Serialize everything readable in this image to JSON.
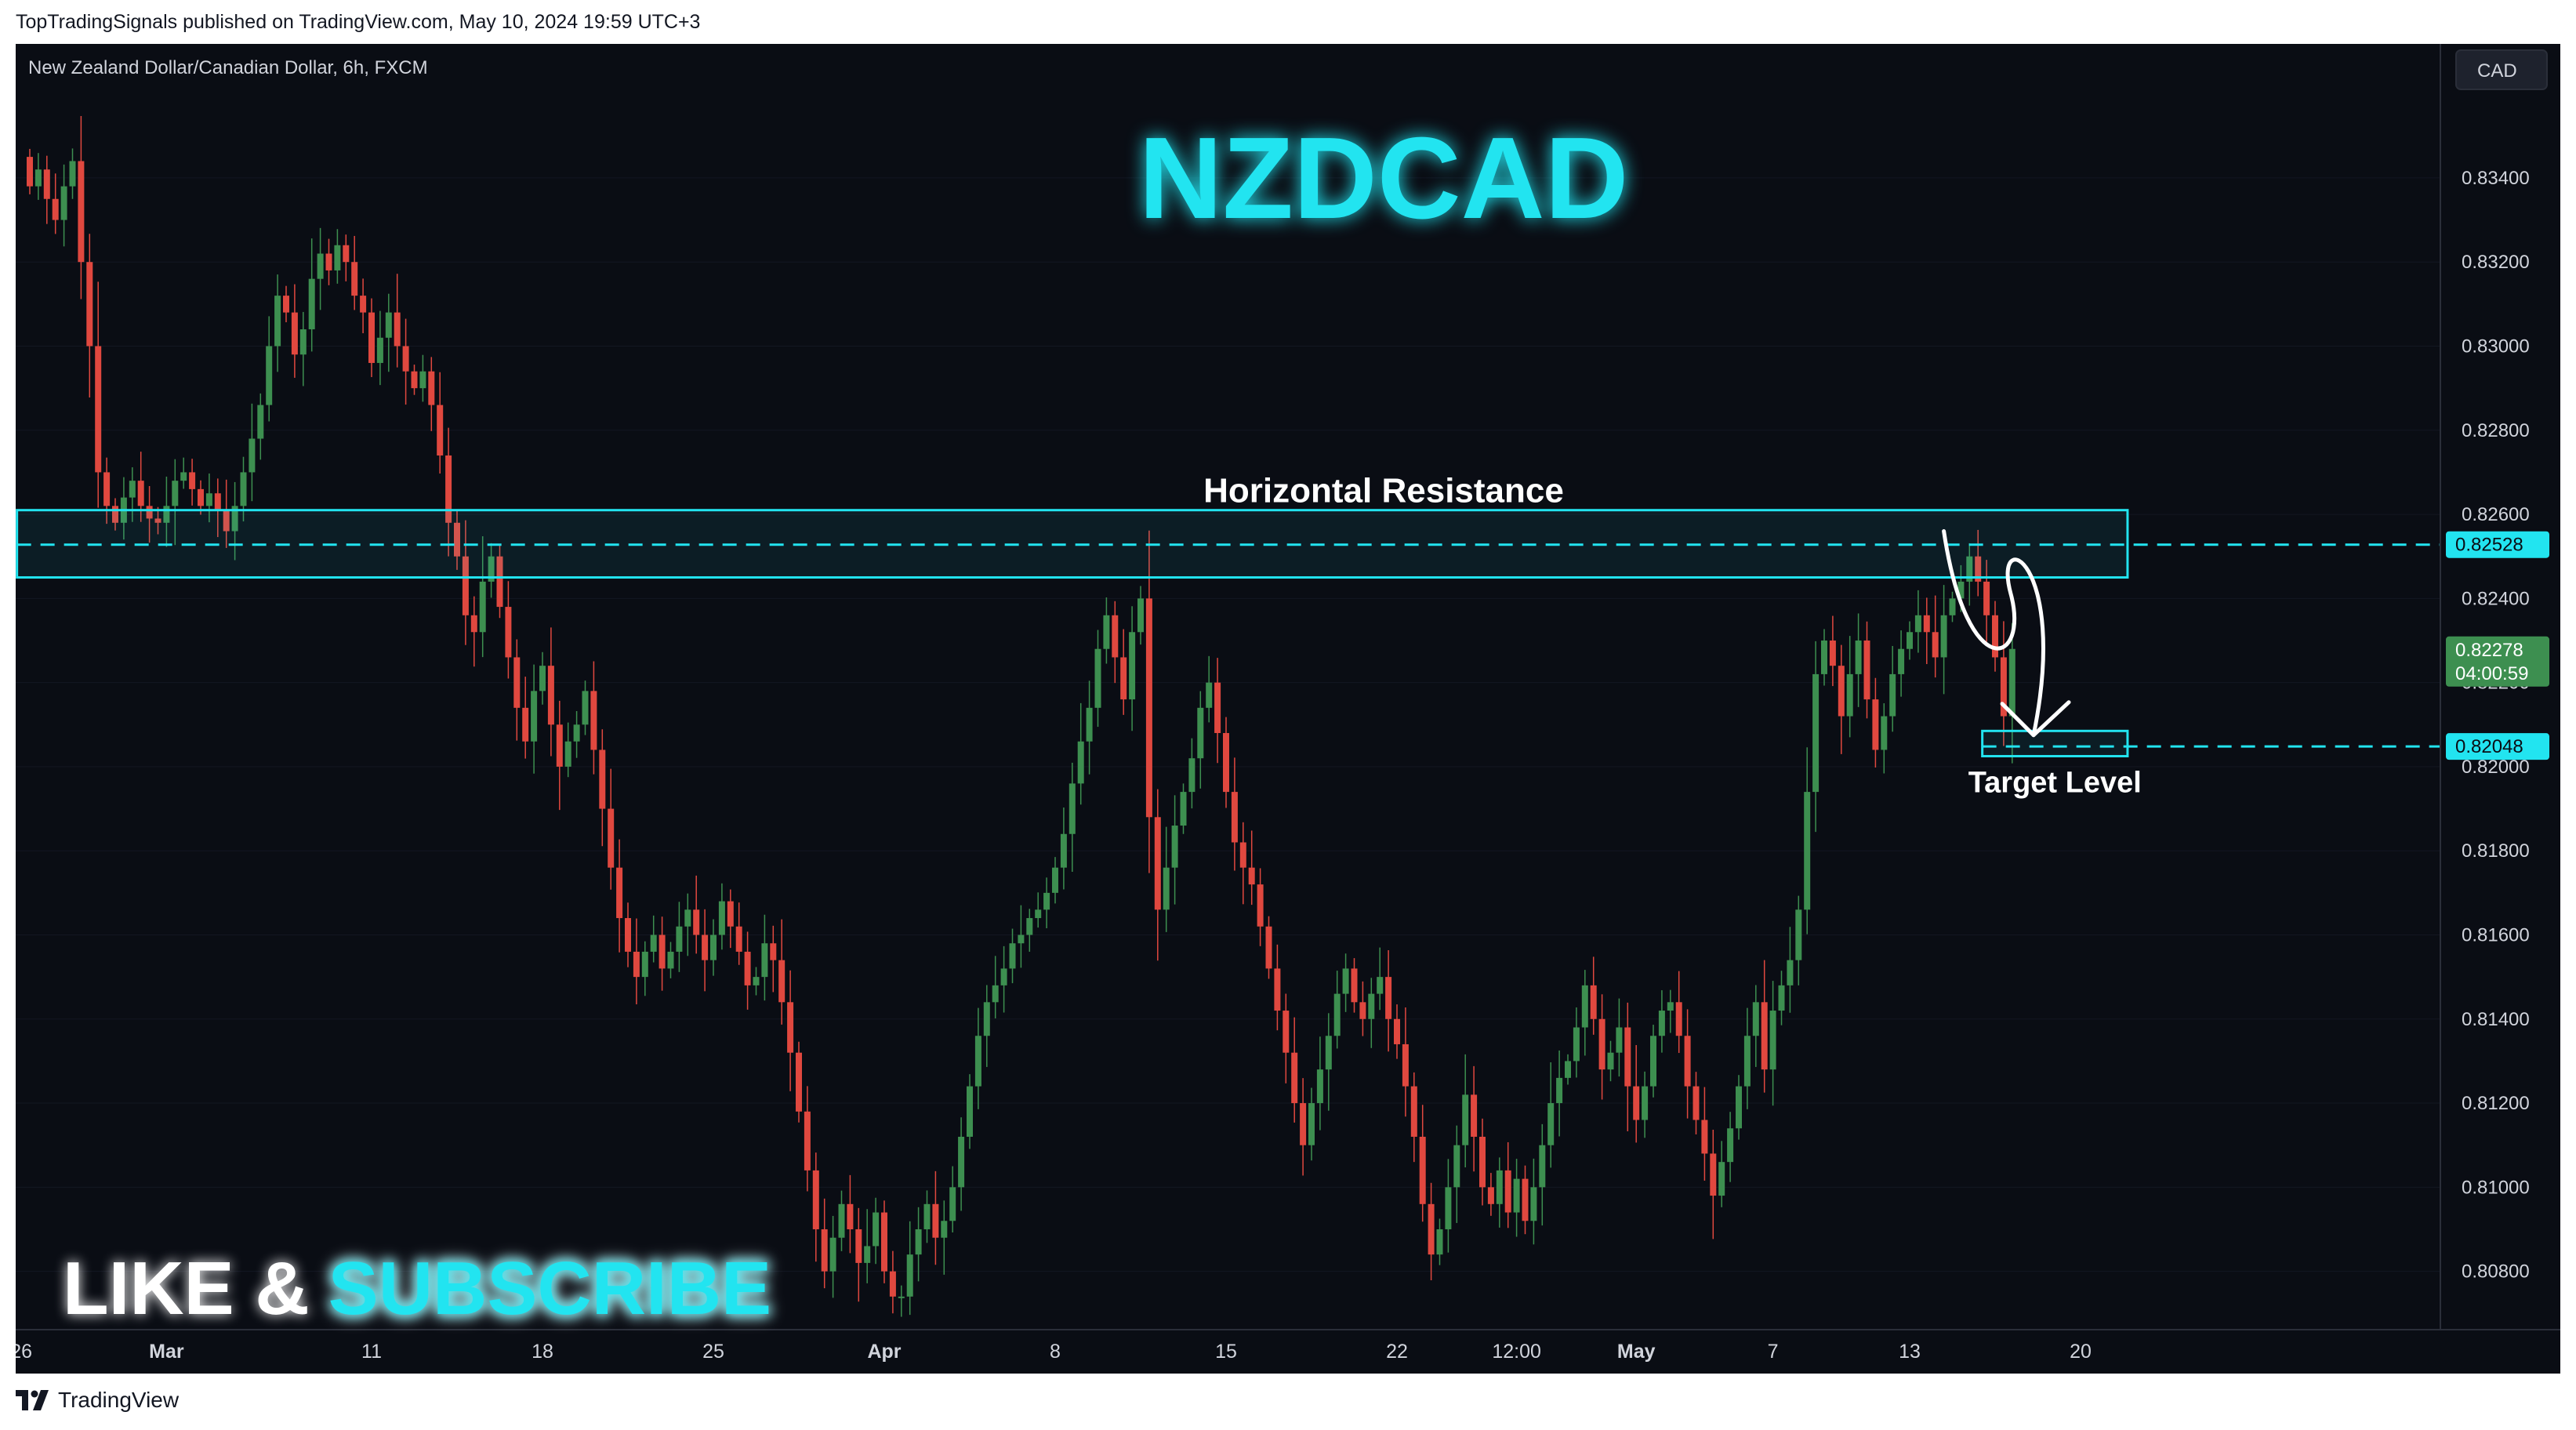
{
  "header": {
    "publish_line": "TopTradingSignals published on TradingView.com, May 10, 2024 19:59 UTC+3"
  },
  "footer": {
    "brand": "TradingView"
  },
  "colors": {
    "background": "#0a0d14",
    "up": "#3d8f50",
    "down": "#e0483f",
    "accent": "#22e4f0",
    "axis_text": "#d1d4dc",
    "border": "#2a2e39"
  },
  "chart_data": {
    "type": "candlestick",
    "symbol_line": "New Zealand Dollar/Canadian Dollar, 6h, FXCM",
    "title": "NZDCAD",
    "currency_label": "CAD",
    "y_axis": {
      "ylim": [
        0.8068,
        0.837
      ],
      "ticks": [
        "0.80800",
        "0.81000",
        "0.81200",
        "0.81400",
        "0.81600",
        "0.81800",
        "0.82000",
        "0.82200",
        "0.82400",
        "0.82600",
        "0.82800",
        "0.83000",
        "0.83200",
        "0.83400"
      ]
    },
    "x_axis": {
      "ticks": [
        {
          "label": "26",
          "index": -1
        },
        {
          "label": "Mar",
          "index": 16
        },
        {
          "label": "11",
          "index": 40
        },
        {
          "label": "18",
          "index": 60
        },
        {
          "label": "25",
          "index": 80
        },
        {
          "label": "Apr",
          "index": 100
        },
        {
          "label": "8",
          "index": 120
        },
        {
          "label": "15",
          "index": 140
        },
        {
          "label": "22",
          "index": 160
        },
        {
          "label": "12:00",
          "index": 174
        },
        {
          "label": "May",
          "index": 188
        },
        {
          "label": "7",
          "index": 204
        },
        {
          "label": "13",
          "index": 220
        },
        {
          "label": "20",
          "index": 240
        }
      ]
    },
    "price_series": {
      "name": "NZDCAD",
      "closes_start": 0.8345,
      "closes": [
        0.8338,
        0.8342,
        0.8335,
        0.833,
        0.8338,
        0.8344,
        0.832,
        0.83,
        0.827,
        0.8262,
        0.8258,
        0.8264,
        0.8268,
        0.8262,
        0.8259,
        0.8258,
        0.8262,
        0.8268,
        0.827,
        0.8266,
        0.8262,
        0.8265,
        0.8261,
        0.8256,
        0.8262,
        0.827,
        0.8278,
        0.8286,
        0.83,
        0.8312,
        0.8308,
        0.8298,
        0.8304,
        0.8316,
        0.8322,
        0.8318,
        0.8324,
        0.832,
        0.8312,
        0.8308,
        0.8296,
        0.8302,
        0.8308,
        0.83,
        0.8294,
        0.829,
        0.8294,
        0.8286,
        0.8274,
        0.8258,
        0.825,
        0.8236,
        0.8232,
        0.8244,
        0.825,
        0.8238,
        0.8226,
        0.8214,
        0.8206,
        0.8218,
        0.8224,
        0.821,
        0.82,
        0.8206,
        0.821,
        0.8218,
        0.8204,
        0.819,
        0.8176,
        0.8164,
        0.8156,
        0.815,
        0.8156,
        0.816,
        0.8152,
        0.8156,
        0.8162,
        0.8166,
        0.816,
        0.8154,
        0.816,
        0.8168,
        0.8162,
        0.8156,
        0.8148,
        0.815,
        0.8158,
        0.8154,
        0.8144,
        0.8132,
        0.8118,
        0.8104,
        0.809,
        0.808,
        0.8088,
        0.8096,
        0.809,
        0.8082,
        0.8086,
        0.8094,
        0.808,
        0.8074,
        0.8074,
        0.8084,
        0.809,
        0.8096,
        0.8088,
        0.8092,
        0.81,
        0.8112,
        0.8124,
        0.8136,
        0.8144,
        0.8148,
        0.8152,
        0.8158,
        0.816,
        0.8164,
        0.8166,
        0.817,
        0.8176,
        0.8184,
        0.8196,
        0.8206,
        0.8214,
        0.8228,
        0.8236,
        0.8226,
        0.8216,
        0.8232,
        0.824,
        0.8188,
        0.8166,
        0.8176,
        0.8186,
        0.8194,
        0.8202,
        0.8214,
        0.822,
        0.8208,
        0.8194,
        0.8182,
        0.8176,
        0.8172,
        0.8162,
        0.8152,
        0.8142,
        0.8132,
        0.812,
        0.811,
        0.812,
        0.8128,
        0.8136,
        0.8146,
        0.8152,
        0.8144,
        0.814,
        0.8146,
        0.815,
        0.814,
        0.8134,
        0.8124,
        0.8112,
        0.8096,
        0.8084,
        0.809,
        0.81,
        0.811,
        0.8122,
        0.8112,
        0.81,
        0.8096,
        0.8104,
        0.8094,
        0.8102,
        0.8092,
        0.81,
        0.811,
        0.812,
        0.8126,
        0.813,
        0.8138,
        0.8148,
        0.814,
        0.8128,
        0.8132,
        0.8138,
        0.8124,
        0.8116,
        0.8124,
        0.8136,
        0.8142,
        0.8144,
        0.8136,
        0.8124,
        0.8116,
        0.8108,
        0.8098,
        0.8106,
        0.8114,
        0.8124,
        0.8136,
        0.8144,
        0.8128,
        0.8142,
        0.8148,
        0.8154,
        0.8166,
        0.8194,
        0.8222,
        0.823,
        0.8224,
        0.8212,
        0.8222,
        0.823,
        0.8216,
        0.8204,
        0.8212,
        0.8222,
        0.8228,
        0.8232,
        0.8236,
        0.8232,
        0.8226,
        0.8236,
        0.824,
        0.8244,
        0.825,
        0.8244,
        0.8236,
        0.8226,
        0.8212,
        0.8228
      ]
    },
    "annotations": {
      "resistance": {
        "label": "Horizontal Resistance",
        "top": 0.8261,
        "bottom": 0.8245,
        "level": 0.82528,
        "level_label": "0.82528",
        "from_index": -1.5,
        "to_index": 245.5
      },
      "target": {
        "label": "Target Level",
        "top": 0.82085,
        "bottom": 0.82025,
        "level": 0.82048,
        "level_label": "0.82048",
        "from_index": 228.5,
        "to_index": 245.5
      },
      "last_price": {
        "label": "0.82278",
        "countdown": "04:00:59"
      },
      "banner": {
        "left_text": "LIKE &",
        "right_text": "SUBSCRIBE"
      }
    }
  }
}
